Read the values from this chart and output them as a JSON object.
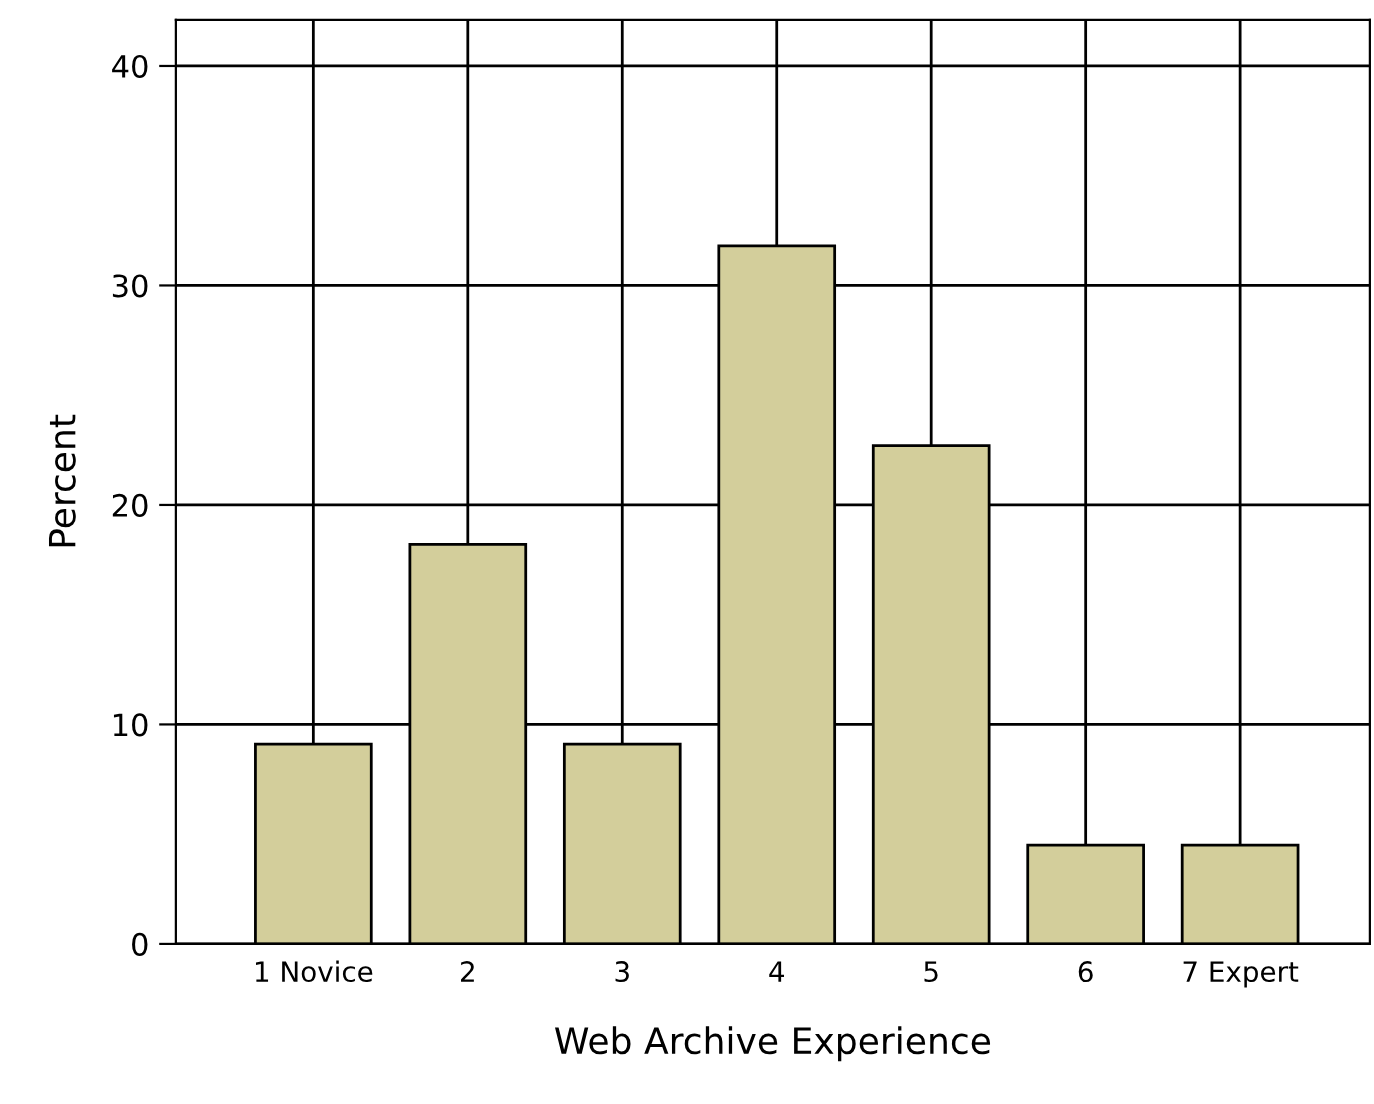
{
  "chart_data": {
    "type": "bar",
    "xlabel": "Web Archive Experience",
    "ylabel": "Percent",
    "categories": [
      "1 Novice",
      "2",
      "3",
      "4",
      "5",
      "6",
      "7 Expert"
    ],
    "values": [
      9.1,
      18.2,
      9.1,
      31.8,
      22.7,
      4.5,
      4.5
    ],
    "color": "#d3ce9b",
    "ylim": [
      0,
      42.1
    ],
    "yticks": [
      0,
      10,
      20,
      30,
      40
    ],
    "grid": true
  }
}
